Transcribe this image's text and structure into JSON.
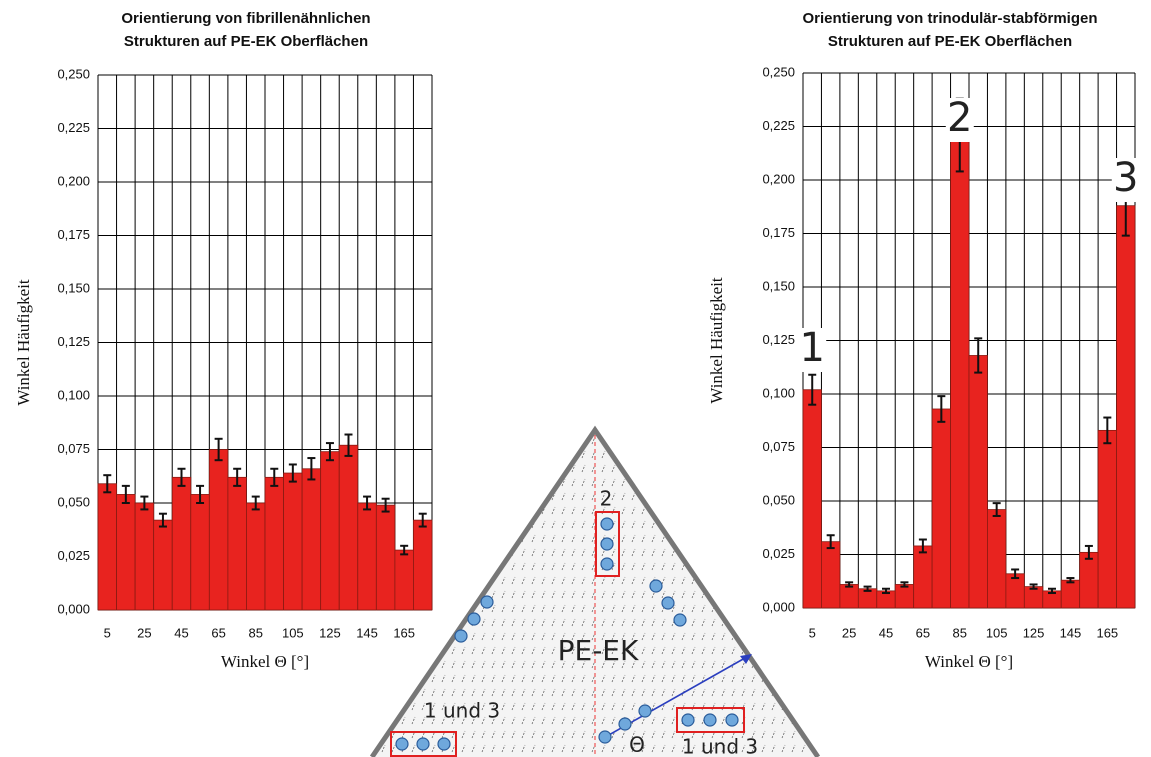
{
  "chart_data": [
    {
      "type": "bar",
      "title": "Orientierung von fibrillenähnlichen",
      "subtitle": "Strukturen auf PE-EK Oberflächen",
      "x_label": "Winkel Θ [°]",
      "y_label": "Winkel Häufigkeit",
      "categories": [
        "5",
        null,
        "25",
        null,
        "45",
        null,
        "65",
        null,
        "85",
        null,
        "105",
        null,
        "125",
        null,
        "145",
        null,
        "165",
        null
      ],
      "values": [
        0.059,
        0.054,
        0.05,
        0.042,
        0.062,
        0.054,
        0.075,
        0.062,
        0.05,
        0.062,
        0.064,
        0.066,
        0.074,
        0.077,
        0.05,
        0.049,
        0.028,
        0.042
      ],
      "errors": [
        0.004,
        0.004,
        0.003,
        0.003,
        0.004,
        0.004,
        0.005,
        0.004,
        0.003,
        0.004,
        0.004,
        0.005,
        0.004,
        0.005,
        0.003,
        0.003,
        0.002,
        0.003
      ],
      "color": "#e8231f",
      "grid": true,
      "ylim": [
        0,
        0.25
      ],
      "yticks": [
        {
          "value": 0,
          "label": "0,000"
        },
        {
          "value": 0.025,
          "label": "0,025"
        },
        {
          "value": 0.05,
          "label": "0,050"
        },
        {
          "value": 0.075,
          "label": "0,075"
        },
        {
          "value": 0.1,
          "label": "0,100"
        },
        {
          "value": 0.125,
          "label": "0,125"
        },
        {
          "value": 0.15,
          "label": "0,150"
        },
        {
          "value": 0.175,
          "label": "0,175"
        },
        {
          "value": 0.2,
          "label": "0,200"
        },
        {
          "value": 0.225,
          "label": "0,225"
        },
        {
          "value": 0.25,
          "label": "0,250"
        }
      ]
    },
    {
      "type": "bar",
      "title": "Orientierung von trinodulär-stabförmigen",
      "subtitle": "Strukturen auf PE-EK Oberflächen",
      "x_label": "Winkel Θ [°]",
      "y_label": "Winkel Häufigkeit",
      "categories": [
        "5",
        null,
        "25",
        null,
        "45",
        null,
        "65",
        null,
        "85",
        null,
        "105",
        null,
        "125",
        null,
        "145",
        null,
        "165",
        null
      ],
      "values": [
        0.102,
        0.031,
        0.011,
        0.009,
        0.008,
        0.011,
        0.029,
        0.093,
        0.221,
        0.118,
        0.046,
        0.016,
        0.01,
        0.008,
        0.013,
        0.026,
        0.083,
        0.188
      ],
      "errors": [
        0.007,
        0.003,
        0.001,
        0.001,
        0.001,
        0.001,
        0.003,
        0.006,
        0.017,
        0.008,
        0.003,
        0.002,
        0.001,
        0.001,
        0.001,
        0.003,
        0.006,
        0.014
      ],
      "annotations": [
        "1",
        "2",
        "3"
      ],
      "color": "#e8231f",
      "grid": true,
      "ylim": [
        0,
        0.25
      ],
      "yticks": [
        {
          "value": 0,
          "label": "0,000"
        },
        {
          "value": 0.025,
          "label": "0,025"
        },
        {
          "value": 0.05,
          "label": "0,050"
        },
        {
          "value": 0.075,
          "label": "0,075"
        },
        {
          "value": 0.1,
          "label": "0,100"
        },
        {
          "value": 0.125,
          "label": "0,125"
        },
        {
          "value": 0.15,
          "label": "0,150"
        },
        {
          "value": 0.175,
          "label": "0,175"
        },
        {
          "value": 0.2,
          "label": "0,200"
        },
        {
          "value": 0.225,
          "label": "0,225"
        },
        {
          "value": 0.25,
          "label": "0,250"
        }
      ]
    }
  ],
  "diagram": {
    "name": "PE-EK",
    "labels": [
      "2",
      "1 und 3",
      "1 und 3",
      "Θ"
    ]
  }
}
